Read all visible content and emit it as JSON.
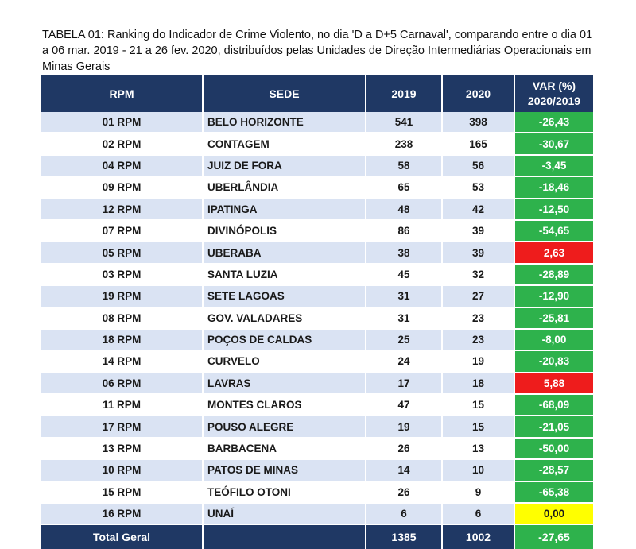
{
  "caption": "TABELA 01: Ranking do Indicador de Crime Violento, no dia 'D a D+5 Carnaval', comparando entre o dia 01 a 06 mar. 2019 - 21 a 26 fev. 2020, distribuídos pelas Unidades de Direção Intermediárias Operacionais em Minas Gerais",
  "table": {
    "headers": {
      "rpm": "RPM",
      "sede": "SEDE",
      "y2019": "2019",
      "y2020": "2020",
      "var_line1": "VAR (%)",
      "var_line2": "2020/2019"
    },
    "rows": [
      {
        "rpm": "01 RPM",
        "sede": "BELO HORIZONTE",
        "y2019": "541",
        "y2020": "398",
        "var": "-26,43",
        "status": "neg"
      },
      {
        "rpm": "02 RPM",
        "sede": "CONTAGEM",
        "y2019": "238",
        "y2020": "165",
        "var": "-30,67",
        "status": "neg"
      },
      {
        "rpm": "04 RPM",
        "sede": "JUIZ DE FORA",
        "y2019": "58",
        "y2020": "56",
        "var": "-3,45",
        "status": "neg"
      },
      {
        "rpm": "09 RPM",
        "sede": "UBERLÂNDIA",
        "y2019": "65",
        "y2020": "53",
        "var": "-18,46",
        "status": "neg"
      },
      {
        "rpm": "12 RPM",
        "sede": "IPATINGA",
        "y2019": "48",
        "y2020": "42",
        "var": "-12,50",
        "status": "neg"
      },
      {
        "rpm": "07 RPM",
        "sede": "DIVINÓPOLIS",
        "y2019": "86",
        "y2020": "39",
        "var": "-54,65",
        "status": "neg"
      },
      {
        "rpm": "05 RPM",
        "sede": "UBERABA",
        "y2019": "38",
        "y2020": "39",
        "var": "2,63",
        "status": "pos"
      },
      {
        "rpm": "03 RPM",
        "sede": "SANTA LUZIA",
        "y2019": "45",
        "y2020": "32",
        "var": "-28,89",
        "status": "neg"
      },
      {
        "rpm": "19 RPM",
        "sede": "SETE LAGOAS",
        "y2019": "31",
        "y2020": "27",
        "var": "-12,90",
        "status": "neg"
      },
      {
        "rpm": "08 RPM",
        "sede": "GOV. VALADARES",
        "y2019": "31",
        "y2020": "23",
        "var": "-25,81",
        "status": "neg"
      },
      {
        "rpm": "18 RPM",
        "sede": "POÇOS DE CALDAS",
        "y2019": "25",
        "y2020": "23",
        "var": "-8,00",
        "status": "neg"
      },
      {
        "rpm": "14 RPM",
        "sede": "CURVELO",
        "y2019": "24",
        "y2020": "19",
        "var": "-20,83",
        "status": "neg"
      },
      {
        "rpm": "06 RPM",
        "sede": "LAVRAS",
        "y2019": "17",
        "y2020": "18",
        "var": "5,88",
        "status": "pos"
      },
      {
        "rpm": "11 RPM",
        "sede": "MONTES CLAROS",
        "y2019": "47",
        "y2020": "15",
        "var": "-68,09",
        "status": "neg"
      },
      {
        "rpm": "17 RPM",
        "sede": "POUSO ALEGRE",
        "y2019": "19",
        "y2020": "15",
        "var": "-21,05",
        "status": "neg"
      },
      {
        "rpm": "13 RPM",
        "sede": "BARBACENA",
        "y2019": "26",
        "y2020": "13",
        "var": "-50,00",
        "status": "neg"
      },
      {
        "rpm": "10 RPM",
        "sede": "PATOS DE MINAS",
        "y2019": "14",
        "y2020": "10",
        "var": "-28,57",
        "status": "neg"
      },
      {
        "rpm": "15 RPM",
        "sede": "TEÓFILO OTONI",
        "y2019": "26",
        "y2020": "9",
        "var": "-65,38",
        "status": "neg"
      },
      {
        "rpm": "16 RPM",
        "sede": "UNAÍ",
        "y2019": "6",
        "y2020": "6",
        "var": "0,00",
        "status": "zero"
      }
    ],
    "total": {
      "label": "Total Geral",
      "y2019": "1385",
      "y2020": "1002",
      "var": "-27,65"
    }
  },
  "colors": {
    "header_bg": "#1f3864",
    "row_stripe": "#dae3f3",
    "decrease": "#2eb24c",
    "increase": "#ee1c1c",
    "unchanged": "#ffff00"
  }
}
